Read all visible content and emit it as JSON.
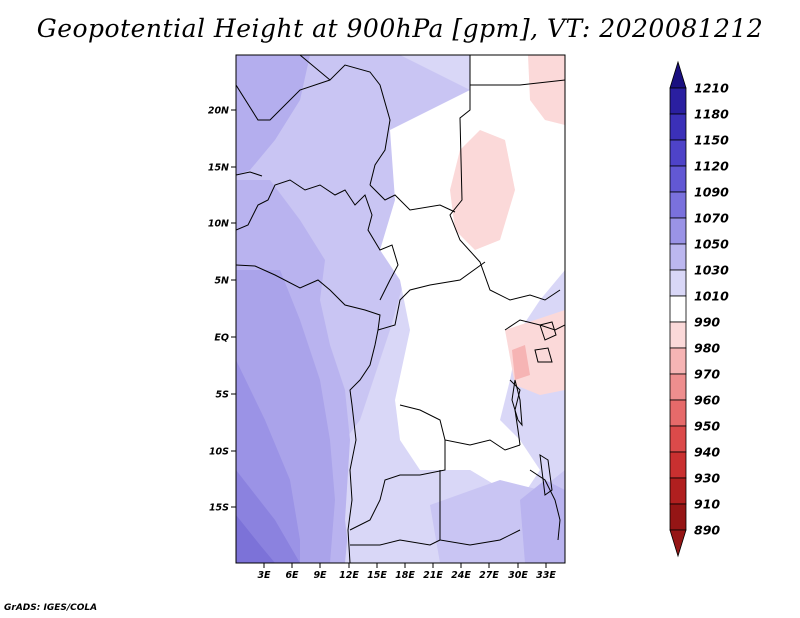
{
  "title": "Geopotential Height at 900hPa [gpm], VT: 2020081212",
  "credit": "GrADS: IGES/COLA",
  "map": {
    "lat_labels": [
      "20N",
      "15N",
      "10N",
      "5N",
      "EQ",
      "5S",
      "10S",
      "15S"
    ],
    "lon_labels": [
      "3E",
      "6E",
      "9E",
      "12E",
      "15E",
      "18E",
      "21E",
      "24E",
      "27E",
      "30E",
      "33E"
    ]
  },
  "colorbar": {
    "levels": [
      "1210",
      "1180",
      "1150",
      "1120",
      "1090",
      "1070",
      "1050",
      "1030",
      "1010",
      "990",
      "980",
      "970",
      "960",
      "950",
      "940",
      "930",
      "910",
      "890"
    ],
    "colors": [
      "#1a1080",
      "#2a1fa0",
      "#3b30b8",
      "#4e43c8",
      "#6258d4",
      "#7a71dd",
      "#9a93e6",
      "#bcb7ef",
      "#d9d7f7",
      "#ffffff",
      "#fbd9d9",
      "#f6b4b4",
      "#ee8e8e",
      "#e66a6a",
      "#db4a4a",
      "#c93030",
      "#b01f1f",
      "#951515"
    ]
  }
}
